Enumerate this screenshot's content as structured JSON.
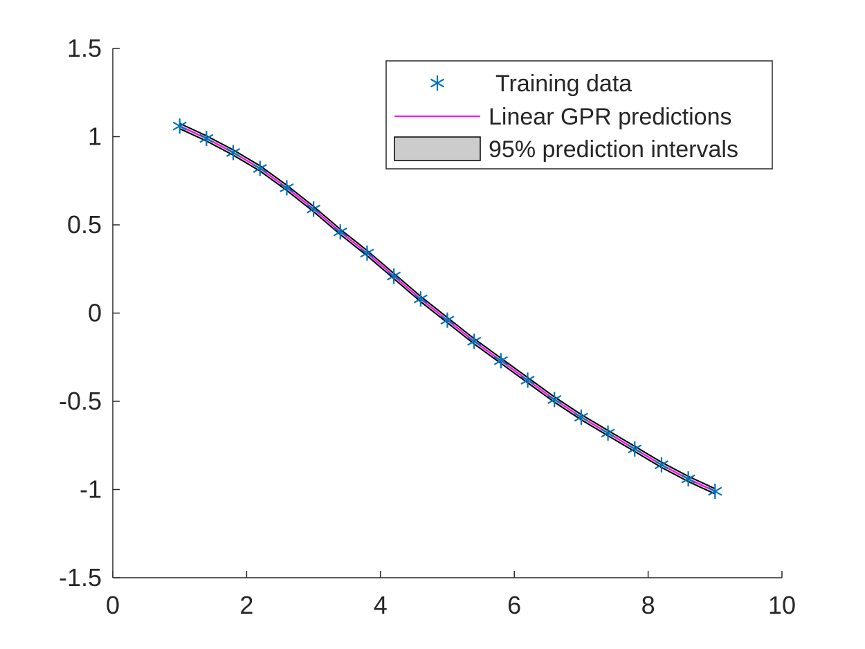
{
  "chart_data": {
    "type": "line",
    "title": "",
    "xlabel": "",
    "ylabel": "",
    "xlim": [
      0,
      10
    ],
    "ylim": [
      -1.5,
      1.5
    ],
    "x_ticks": [
      0,
      2,
      4,
      6,
      8,
      10
    ],
    "y_ticks": [
      -1.5,
      -1,
      -0.5,
      0,
      0.5,
      1,
      1.5
    ],
    "x_tick_labels": [
      "0",
      "2",
      "4",
      "6",
      "8",
      "10"
    ],
    "y_tick_labels": [
      "-1.5",
      "-1",
      "-0.5",
      "0",
      "0.5",
      "1",
      "1.5"
    ],
    "grid": false,
    "box": false,
    "legend_position": "top-right",
    "series": [
      {
        "name": "Training data",
        "kind": "scatter",
        "marker": "asterisk",
        "color": "#0072BD",
        "x": [
          1.0,
          1.4,
          1.8,
          2.2,
          2.6,
          3.0,
          3.4,
          3.8,
          4.2,
          4.6,
          5.0,
          5.4,
          5.8,
          6.2,
          6.6,
          7.0,
          7.4,
          7.8,
          8.2,
          8.6,
          9.0
        ],
        "y": [
          1.06,
          0.99,
          0.91,
          0.82,
          0.71,
          0.59,
          0.46,
          0.34,
          0.21,
          0.08,
          -0.04,
          -0.16,
          -0.27,
          -0.38,
          -0.49,
          -0.59,
          -0.68,
          -0.77,
          -0.86,
          -0.94,
          -1.01
        ]
      },
      {
        "name": "Linear GPR predictions",
        "kind": "line",
        "color": "#FF00FF",
        "x": [
          1.0,
          1.4,
          1.8,
          2.2,
          2.6,
          3.0,
          3.4,
          3.8,
          4.2,
          4.6,
          5.0,
          5.4,
          5.8,
          6.2,
          6.6,
          7.0,
          7.4,
          7.8,
          8.2,
          8.6,
          9.0
        ],
        "y": [
          1.06,
          0.99,
          0.91,
          0.82,
          0.71,
          0.59,
          0.46,
          0.34,
          0.21,
          0.08,
          -0.04,
          -0.16,
          -0.27,
          -0.38,
          -0.49,
          -0.59,
          -0.68,
          -0.77,
          -0.86,
          -0.94,
          -1.01
        ]
      },
      {
        "name": "95% prediction intervals",
        "kind": "band",
        "fill_color": "#CCCCCC",
        "edge_color": "#000000",
        "x": [
          1.0,
          1.4,
          1.8,
          2.2,
          2.6,
          3.0,
          3.4,
          3.8,
          4.2,
          4.6,
          5.0,
          5.4,
          5.8,
          6.2,
          6.6,
          7.0,
          7.4,
          7.8,
          8.2,
          8.6,
          9.0
        ],
        "lower": [
          1.045,
          0.975,
          0.895,
          0.805,
          0.695,
          0.575,
          0.445,
          0.325,
          0.195,
          0.065,
          -0.055,
          -0.175,
          -0.285,
          -0.395,
          -0.505,
          -0.605,
          -0.695,
          -0.785,
          -0.875,
          -0.955,
          -1.025
        ],
        "upper": [
          1.075,
          1.005,
          0.925,
          0.835,
          0.725,
          0.605,
          0.475,
          0.355,
          0.225,
          0.095,
          -0.025,
          -0.145,
          -0.255,
          -0.365,
          -0.475,
          -0.575,
          -0.665,
          -0.755,
          -0.845,
          -0.925,
          -0.995
        ]
      }
    ]
  }
}
